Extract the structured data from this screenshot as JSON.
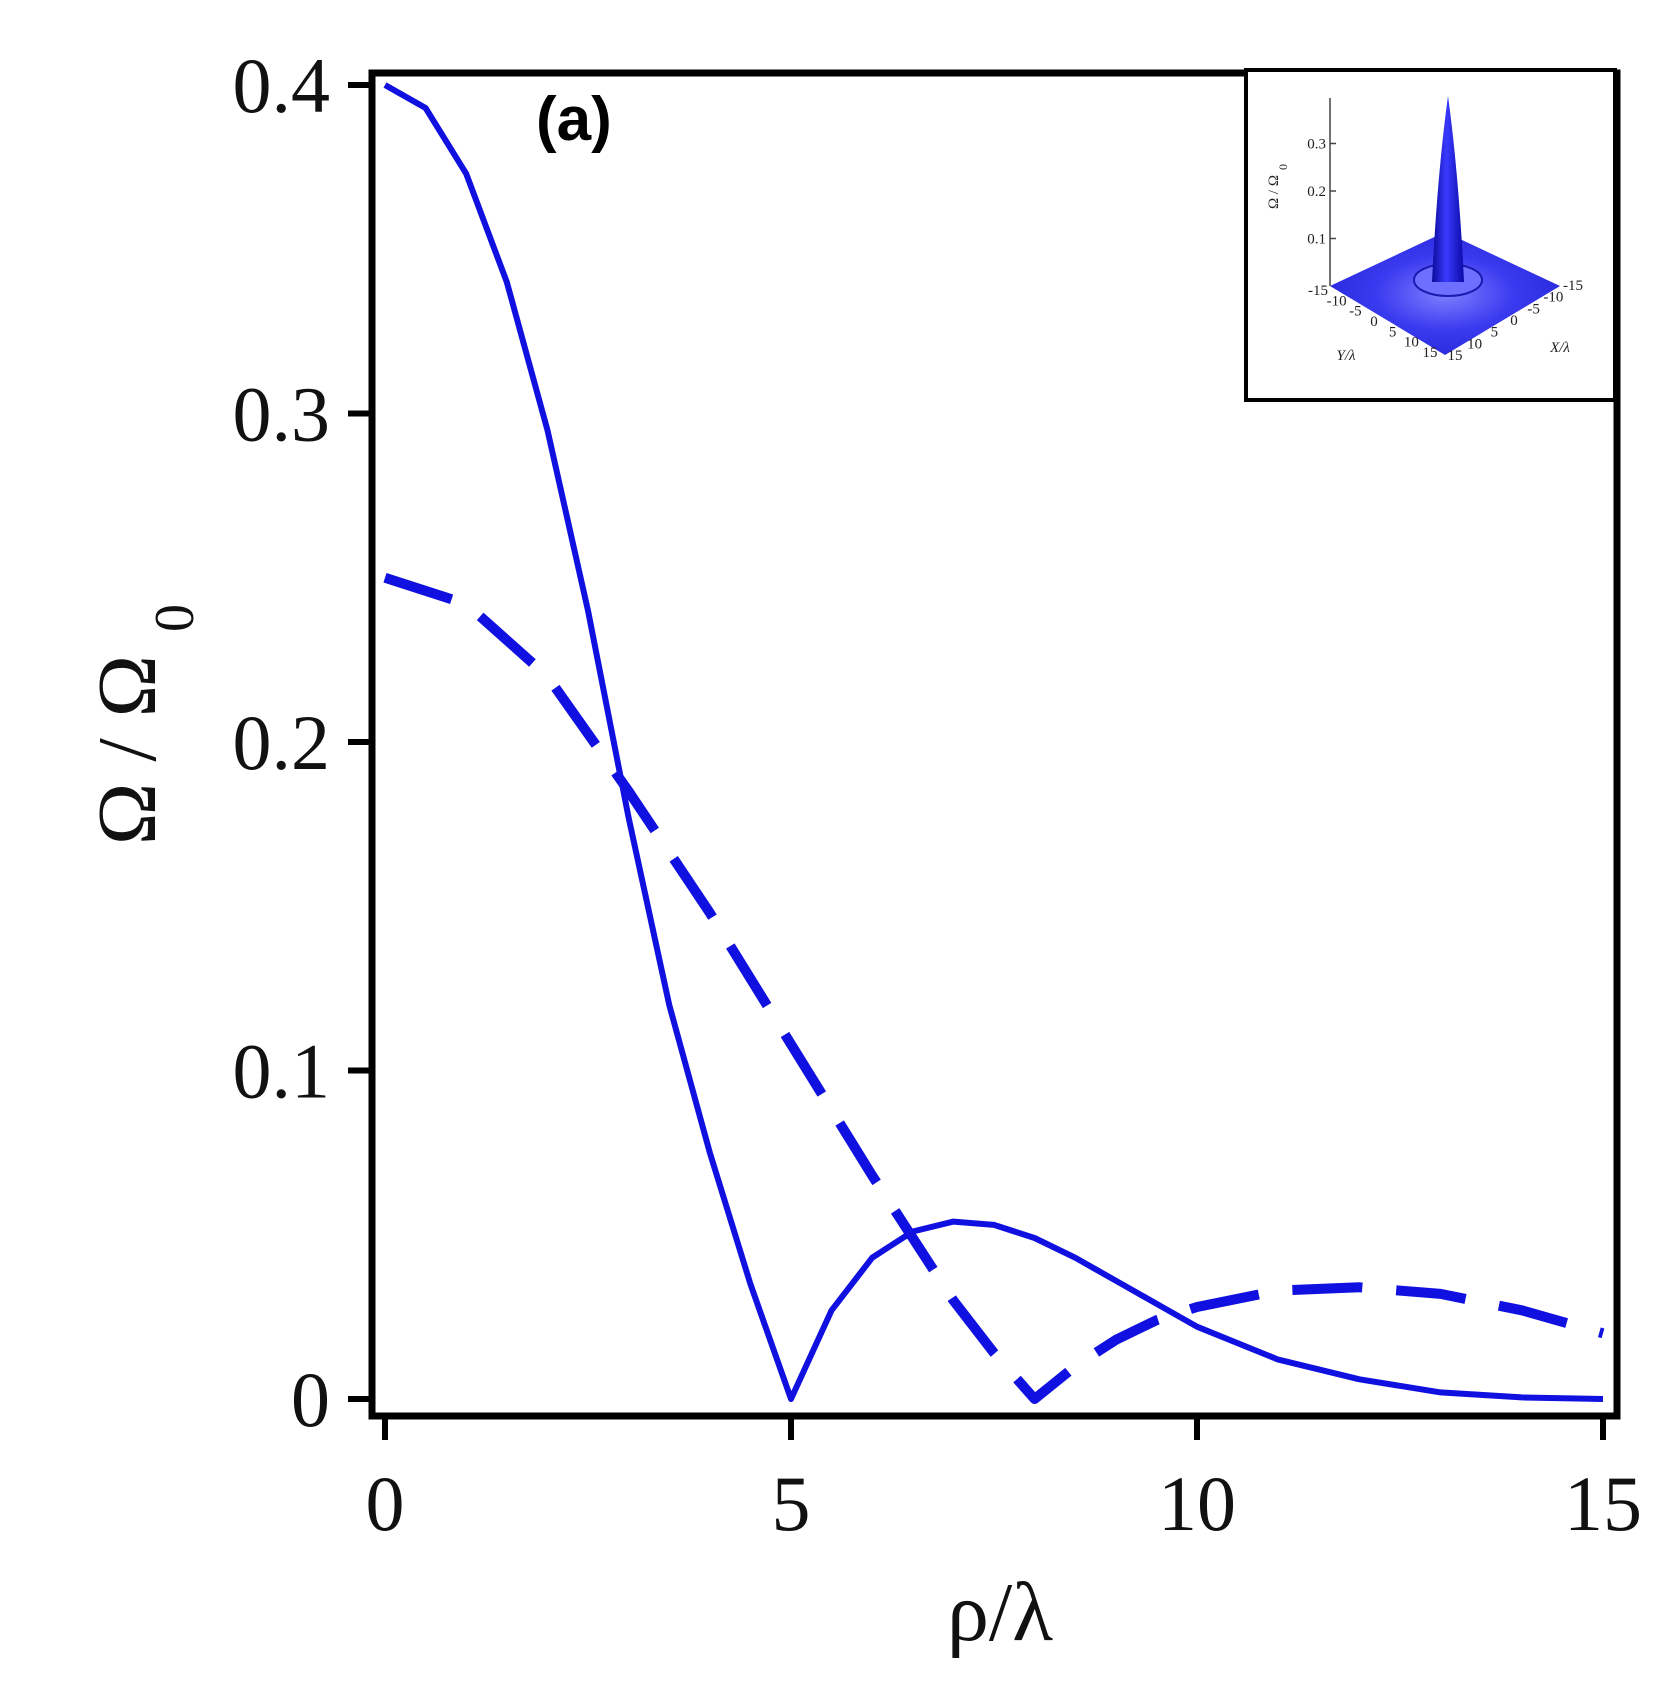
{
  "panel_label": "(a)",
  "chart_data": {
    "type": "line",
    "title": "",
    "xlabel": "ρ/λ",
    "ylabel": "Ω / Ω",
    "ylabel_subscript": "0",
    "xlim": [
      0,
      15
    ],
    "ylim": [
      0,
      0.4
    ],
    "x_ticks": [
      "0",
      "5",
      "10",
      "15"
    ],
    "y_ticks": [
      "0",
      "0.1",
      "0.2",
      "0.3",
      "0.4"
    ],
    "grid": false,
    "legend": "none",
    "series": [
      {
        "style": "solid",
        "color": "#1010e0",
        "x": [
          0,
          0.5,
          1,
          1.5,
          2,
          2.5,
          3,
          3.5,
          4,
          4.5,
          5,
          5.5,
          6,
          6.5,
          7,
          7.5,
          8,
          8.5,
          9,
          9.5,
          10,
          11,
          12,
          13,
          14,
          15
        ],
        "y": [
          0.4,
          0.393,
          0.373,
          0.34,
          0.295,
          0.24,
          0.177,
          0.12,
          0.075,
          0.035,
          0.0,
          0.027,
          0.043,
          0.051,
          0.054,
          0.053,
          0.049,
          0.043,
          0.036,
          0.029,
          0.022,
          0.012,
          0.006,
          0.002,
          0.0005,
          0.0
        ]
      },
      {
        "style": "dashed",
        "color": "#1010e0",
        "x": [
          0,
          1,
          2,
          3,
          4,
          5,
          6,
          7,
          7.5,
          8,
          8.5,
          9,
          9.5,
          10,
          11,
          12,
          13,
          14,
          15
        ],
        "y": [
          0.25,
          0.242,
          0.22,
          0.185,
          0.148,
          0.108,
          0.068,
          0.03,
          0.014,
          0.0,
          0.01,
          0.018,
          0.024,
          0.028,
          0.033,
          0.034,
          0.032,
          0.027,
          0.02
        ]
      }
    ],
    "inset": {
      "type": "surface3d",
      "zlabel": "Ω / Ω",
      "zlabel_subscript": "0",
      "xlabel": "X/λ",
      "ylabel": "Y/λ",
      "z_ticks": [
        "0.1",
        "0.2",
        "0.3"
      ],
      "x_ticks": [
        "15",
        "10",
        "5",
        "0",
        "-5",
        "-10",
        "-15"
      ],
      "y_ticks": [
        "-15",
        "-10",
        "-5",
        "0",
        "5",
        "10",
        "15"
      ],
      "color": "#2a2ae8"
    }
  }
}
